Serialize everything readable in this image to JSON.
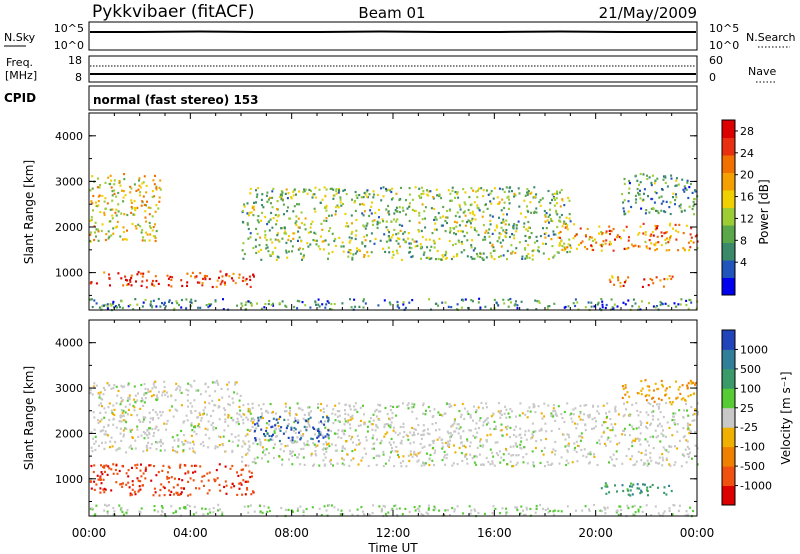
{
  "header": {
    "radar": "Pykkvibaer (fitACF)",
    "beam": "Beam 01",
    "date": "21/May/2009"
  },
  "strips": {
    "nsky": {
      "label": "N.Sky",
      "tick_top": "10^5",
      "tick_bottom": "10^0"
    },
    "nsearch": {
      "label": "N.Search",
      "tick_top": "10^5",
      "tick_bottom": "10^0"
    },
    "freq": {
      "label_line1": "Freq.",
      "label_line2": "[MHz]",
      "tick_top": "18",
      "tick_bottom": "8"
    },
    "nave": {
      "label": "Nave",
      "tick_top": "60",
      "tick_bottom": "0"
    },
    "cpid": {
      "label": "CPID",
      "text": "normal (fast stereo) 153"
    }
  },
  "chart_data": [
    {
      "type": "heatmap",
      "name": "power",
      "ylabel": "Slant Range [km]",
      "ylim": [
        180,
        4500
      ],
      "yticks": [
        "1000",
        "2000",
        "3000",
        "4000"
      ],
      "xlim_hours": [
        0,
        24
      ],
      "colorbar": {
        "label": "Power [dB]",
        "ticks": [
          "4",
          "8",
          "12",
          "16",
          "20",
          "24",
          "28"
        ],
        "colors": [
          "#0000ee",
          "#2255bb",
          "#3a8a6a",
          "#5aa84a",
          "#9ccd34",
          "#f0d000",
          "#f4a000",
          "#f07000",
          "#e83010",
          "#dd0000"
        ]
      },
      "echo_bands": [
        {
          "t0": 0.0,
          "t1": 6.5,
          "r0": 700,
          "r1": 1050,
          "level": 0.85
        },
        {
          "t0": 0.0,
          "t1": 2.8,
          "r0": 1700,
          "r1": 3200,
          "level": 0.55
        },
        {
          "t0": 6.0,
          "t1": 19.0,
          "r0": 1300,
          "r1": 2900,
          "level": 0.4
        },
        {
          "t0": 18.5,
          "t1": 24.0,
          "r0": 1500,
          "r1": 2100,
          "level": 0.7
        },
        {
          "t0": 20.5,
          "t1": 23.0,
          "r0": 700,
          "r1": 950,
          "level": 0.75
        },
        {
          "t0": 21.0,
          "t1": 24.0,
          "r0": 2300,
          "r1": 3200,
          "level": 0.3
        },
        {
          "t0": 0.0,
          "t1": 24.0,
          "r0": 200,
          "r1": 450,
          "level": 0.25
        }
      ]
    },
    {
      "type": "heatmap",
      "name": "velocity",
      "ylabel": "Slant Range [km]",
      "ylim": [
        180,
        4500
      ],
      "yticks": [
        "1000",
        "2000",
        "3000",
        "4000"
      ],
      "xlim_hours": [
        0,
        24
      ],
      "xticks": [
        "00:00",
        "04:00",
        "08:00",
        "12:00",
        "16:00",
        "20:00",
        "00:00"
      ],
      "xlabel": "Time UT",
      "colorbar": {
        "label": "Velocity [m s⁻¹]",
        "ticks": [
          "1000",
          "500",
          "100",
          "25",
          "-25",
          "-100",
          "-500",
          "-1000"
        ],
        "colors": [
          "#2244bb",
          "#2f7f9a",
          "#3a9a6a",
          "#55cc33",
          "#c8c8c8",
          "#f0b000",
          "#f08000",
          "#f05010",
          "#dd0000"
        ]
      },
      "echo_bands": [
        {
          "t0": 0.0,
          "t1": 6.5,
          "r0": 650,
          "r1": 1350,
          "level": -0.8
        },
        {
          "t0": 0.0,
          "t1": 6.0,
          "r0": 1600,
          "r1": 3200,
          "level": 0.0
        },
        {
          "t0": 6.0,
          "t1": 24.0,
          "r0": 1300,
          "r1": 2700,
          "level": 0.0
        },
        {
          "t0": 6.5,
          "t1": 9.5,
          "r0": 1850,
          "r1": 2400,
          "level": 0.9
        },
        {
          "t0": 20.0,
          "t1": 23.0,
          "r0": 650,
          "r1": 950,
          "level": 0.5
        },
        {
          "t0": 21.0,
          "t1": 24.0,
          "r0": 2700,
          "r1": 3200,
          "level": -0.3
        },
        {
          "t0": 0.0,
          "t1": 24.0,
          "r0": 200,
          "r1": 450,
          "level": 0.1
        }
      ]
    }
  ]
}
